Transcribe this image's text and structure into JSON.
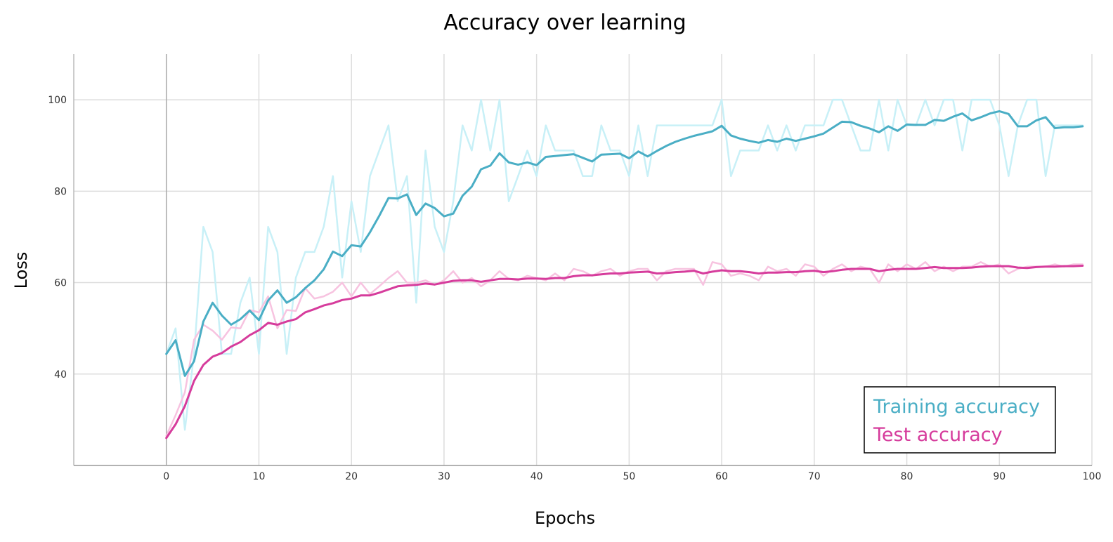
{
  "chart_data": {
    "type": "line",
    "title": "Accuracy over learning",
    "xlabel": "Epochs",
    "ylabel": "Loss",
    "xlim": [
      -10,
      100
    ],
    "ylim": [
      20,
      110
    ],
    "x_ticks": [
      0,
      10,
      20,
      30,
      40,
      50,
      60,
      70,
      80,
      90,
      100
    ],
    "y_ticks": [
      40,
      60,
      80,
      100
    ],
    "grid": true,
    "legend_position": "bottom-right",
    "x": [
      0,
      1,
      2,
      3,
      4,
      5,
      6,
      7,
      8,
      9,
      10,
      11,
      12,
      13,
      14,
      15,
      16,
      17,
      18,
      19,
      20,
      21,
      22,
      23,
      24,
      25,
      26,
      27,
      28,
      29,
      30,
      31,
      32,
      33,
      34,
      35,
      36,
      37,
      38,
      39,
      40,
      41,
      42,
      43,
      44,
      45,
      46,
      47,
      48,
      49,
      50,
      51,
      52,
      53,
      54,
      55,
      56,
      57,
      58,
      59,
      60,
      61,
      62,
      63,
      64,
      65,
      66,
      67,
      68,
      69,
      70,
      71,
      72,
      73,
      74,
      75,
      76,
      77,
      78,
      79,
      80,
      81,
      82,
      83,
      84,
      85,
      86,
      87,
      88,
      89,
      90,
      91,
      92,
      93,
      94,
      95,
      96,
      97,
      98,
      99
    ],
    "series": [
      {
        "name": "Training accuracy",
        "color": "#4aaec5",
        "values": [
          44.4,
          47.4,
          39.6,
          42.8,
          51.5,
          55.6,
          52.8,
          50.8,
          52.0,
          53.9,
          51.8,
          56.1,
          58.3,
          55.6,
          56.8,
          58.8,
          60.5,
          62.9,
          66.8,
          65.8,
          68.2,
          67.9,
          71.0,
          74.6,
          78.5,
          78.4,
          79.3,
          74.8,
          77.3,
          76.3,
          74.5,
          75.1,
          79.0,
          81.0,
          84.8,
          85.6,
          88.3,
          86.3,
          85.8,
          86.3,
          85.7,
          87.5,
          87.7,
          87.9,
          88.1,
          87.3,
          86.5,
          88.0,
          88.1,
          88.2,
          87.2,
          88.7,
          87.6,
          88.8,
          89.9,
          90.8,
          91.5,
          92.1,
          92.6,
          93.1,
          94.3,
          92.2,
          91.5,
          91.0,
          90.6,
          91.2,
          90.8,
          91.5,
          91.0,
          91.5,
          92.0,
          92.6,
          93.9,
          95.2,
          95.1,
          94.3,
          93.7,
          92.9,
          94.2,
          93.2,
          94.6,
          94.5,
          94.5,
          95.6,
          95.4,
          96.3,
          97.0,
          95.5,
          96.2,
          97.0,
          97.5,
          96.9,
          94.2,
          94.2,
          95.5,
          96.2,
          93.8,
          94.0,
          94.0,
          94.2
        ]
      },
      {
        "name": "",
        "color": "#c8f0f7",
        "values": [
          44.4,
          50.0,
          27.8,
          44.4,
          72.2,
          66.7,
          44.4,
          44.4,
          55.6,
          61.1,
          44.4,
          72.2,
          66.7,
          44.4,
          61.1,
          66.7,
          66.7,
          72.2,
          83.3,
          61.1,
          77.8,
          66.7,
          83.3,
          88.9,
          94.4,
          77.8,
          83.3,
          55.6,
          88.9,
          72.2,
          66.7,
          77.8,
          94.4,
          88.9,
          100,
          88.9,
          100,
          77.8,
          83.3,
          88.9,
          83.3,
          94.4,
          88.9,
          88.9,
          88.9,
          83.3,
          83.3,
          94.4,
          88.9,
          88.9,
          83.3,
          94.4,
          83.3,
          94.4,
          94.4,
          94.4,
          94.4,
          94.4,
          94.4,
          94.4,
          100,
          83.3,
          88.9,
          88.9,
          88.9,
          94.4,
          88.9,
          94.4,
          88.9,
          94.4,
          94.4,
          94.4,
          100,
          100,
          94.4,
          88.9,
          88.9,
          100,
          88.9,
          100,
          94.4,
          94.4,
          100,
          94.4,
          100,
          100,
          88.9,
          100,
          100,
          100,
          94.4,
          83.3,
          94.4,
          100,
          100,
          83.3,
          94.4,
          94.4,
          94.4,
          94.4
        ]
      },
      {
        "name": "Test accuracy",
        "color": "#d63c9c",
        "values": [
          26.0,
          29.0,
          33.0,
          38.5,
          42.0,
          43.8,
          44.6,
          46.0,
          47.0,
          48.5,
          49.6,
          51.2,
          50.8,
          51.5,
          52.0,
          53.5,
          54.2,
          55.0,
          55.5,
          56.2,
          56.5,
          57.2,
          57.2,
          57.8,
          58.5,
          59.2,
          59.4,
          59.5,
          59.8,
          59.6,
          60.0,
          60.4,
          60.5,
          60.5,
          60.2,
          60.5,
          60.8,
          60.8,
          60.7,
          60.9,
          60.9,
          60.8,
          61.0,
          61.0,
          61.4,
          61.6,
          61.6,
          61.8,
          62.0,
          62.0,
          62.2,
          62.3,
          62.4,
          62.0,
          62.1,
          62.3,
          62.4,
          62.6,
          62.0,
          62.4,
          62.7,
          62.5,
          62.5,
          62.3,
          62.0,
          62.2,
          62.2,
          62.3,
          62.3,
          62.5,
          62.6,
          62.3,
          62.5,
          62.8,
          63.0,
          63.0,
          63.0,
          62.5,
          62.8,
          63.0,
          63.0,
          63.0,
          63.2,
          63.4,
          63.2,
          63.2,
          63.2,
          63.3,
          63.5,
          63.6,
          63.6,
          63.6,
          63.3,
          63.2,
          63.4,
          63.5,
          63.5,
          63.6,
          63.6,
          63.7
        ]
      },
      {
        "name": "",
        "color": "#f7c3e0",
        "values": [
          26.5,
          31.0,
          36.0,
          47.5,
          50.8,
          49.5,
          47.5,
          50.2,
          50.0,
          54.0,
          53.5,
          57.0,
          50.0,
          54.0,
          53.8,
          58.8,
          56.5,
          57.0,
          58.0,
          60.0,
          57.0,
          60.0,
          57.5,
          59.2,
          61.0,
          62.5,
          60.0,
          60.0,
          60.5,
          59.5,
          60.5,
          62.5,
          60.0,
          61.0,
          59.2,
          60.5,
          62.5,
          60.8,
          60.5,
          61.5,
          61.0,
          60.5,
          62.0,
          60.5,
          63.0,
          62.5,
          61.5,
          62.5,
          63.0,
          61.5,
          62.5,
          63.0,
          63.0,
          60.5,
          62.5,
          63.0,
          63.0,
          63.0,
          59.5,
          64.5,
          64.0,
          61.5,
          62.0,
          61.5,
          60.5,
          63.5,
          62.5,
          63.0,
          61.5,
          64.0,
          63.5,
          61.5,
          63.0,
          64.0,
          62.5,
          63.5,
          63.0,
          60.0,
          64.0,
          62.5,
          64.0,
          63.0,
          64.5,
          62.5,
          63.5,
          62.5,
          63.5,
          63.5,
          64.5,
          63.5,
          64.0,
          62.0,
          63.0,
          63.5,
          63.5,
          63.5,
          64.0,
          63.5,
          64.0,
          64.0
        ]
      }
    ]
  }
}
